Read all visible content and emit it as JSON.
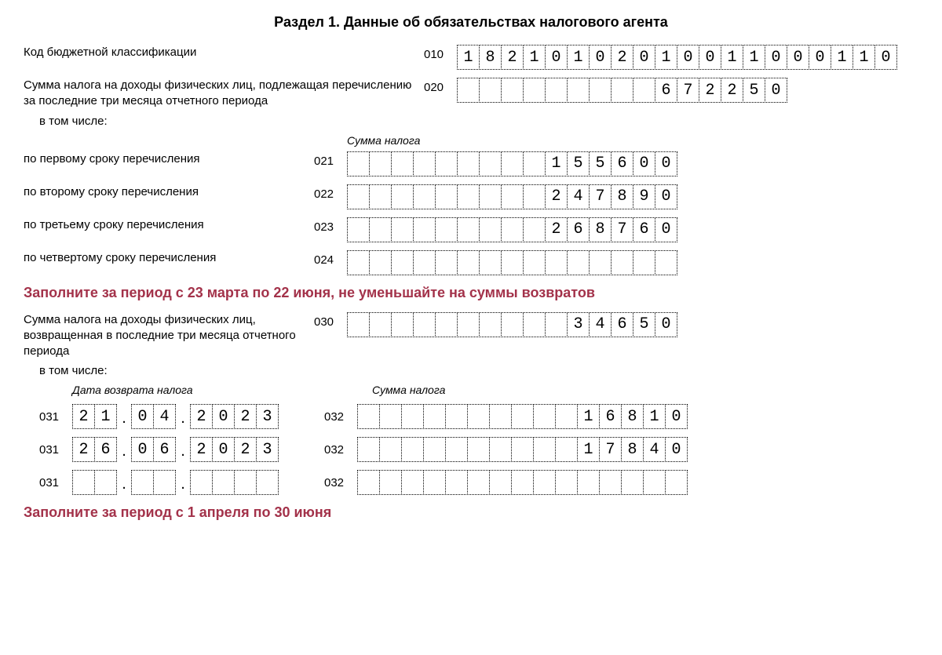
{
  "title": "Раздел 1. Данные об обязательствах налогового агента",
  "row_010": {
    "label": "Код бюджетной классификации",
    "code": "010",
    "cells": [
      "1",
      "8",
      "2",
      "1",
      "0",
      "1",
      "0",
      "2",
      "0",
      "1",
      "0",
      "0",
      "1",
      "1",
      "0",
      "0",
      "0",
      "1",
      "1",
      "0"
    ]
  },
  "row_020": {
    "label": "Сумма налога на доходы физических лиц, подлежащая перечислению за последние три месяца отчетного периода",
    "code": "020",
    "cells": [
      "",
      "",
      "",
      "",
      "",
      "",
      "",
      "",
      "",
      "6",
      "7",
      "2",
      "2",
      "5",
      "0"
    ]
  },
  "sub_label": "в том числе:",
  "sum_heading": "Сумма налога",
  "transfer_rows": [
    {
      "label": "по первому сроку перечисления",
      "code": "021",
      "cells": [
        "",
        "",
        "",
        "",
        "",
        "",
        "",
        "",
        "",
        "1",
        "5",
        "5",
        "6",
        "0",
        "0"
      ]
    },
    {
      "label": "по второму сроку перечисления",
      "code": "022",
      "cells": [
        "",
        "",
        "",
        "",
        "",
        "",
        "",
        "",
        "",
        "2",
        "4",
        "7",
        "8",
        "9",
        "0"
      ]
    },
    {
      "label": "по третьему сроку перечисления",
      "code": "023",
      "cells": [
        "",
        "",
        "",
        "",
        "",
        "",
        "",
        "",
        "",
        "2",
        "6",
        "8",
        "7",
        "6",
        "0"
      ]
    },
    {
      "label": "по четвертому сроку перечисления",
      "code": "024",
      "cells": [
        "",
        "",
        "",
        "",
        "",
        "",
        "",
        "",
        "",
        "",
        "",
        "",
        "",
        "",
        ""
      ]
    }
  ],
  "note_1": "Заполните за период с 23 марта по 22 июня, не уменьшайте на суммы возвратов",
  "row_030": {
    "label": "Сумма налога на доходы физических лиц, возвращенная в последние три месяца отчетного периода",
    "code": "030",
    "cells": [
      "",
      "",
      "",
      "",
      "",
      "",
      "",
      "",
      "",
      "",
      "3",
      "4",
      "6",
      "5",
      "0"
    ]
  },
  "date_heading": "Дата возврата налога",
  "return_rows": [
    {
      "code1": "031",
      "day": [
        "2",
        "1"
      ],
      "mon": [
        "0",
        "4"
      ],
      "yr": [
        "2",
        "0",
        "2",
        "3"
      ],
      "code2": "032",
      "sum": [
        "",
        "",
        "",
        "",
        "",
        "",
        "",
        "",
        "",
        "",
        "1",
        "6",
        "8",
        "1",
        "0"
      ]
    },
    {
      "code1": "031",
      "day": [
        "2",
        "6"
      ],
      "mon": [
        "0",
        "6"
      ],
      "yr": [
        "2",
        "0",
        "2",
        "3"
      ],
      "code2": "032",
      "sum": [
        "",
        "",
        "",
        "",
        "",
        "",
        "",
        "",
        "",
        "",
        "1",
        "7",
        "8",
        "4",
        "0"
      ]
    },
    {
      "code1": "031",
      "day": [
        "",
        ""
      ],
      "mon": [
        "",
        ""
      ],
      "yr": [
        "",
        "",
        "",
        ""
      ],
      "code2": "032",
      "sum": [
        "",
        "",
        "",
        "",
        "",
        "",
        "",
        "",
        "",
        "",
        "",
        "",
        "",
        "",
        ""
      ]
    }
  ],
  "note_2": "Заполните за период с 1 апреля по 30 июня"
}
